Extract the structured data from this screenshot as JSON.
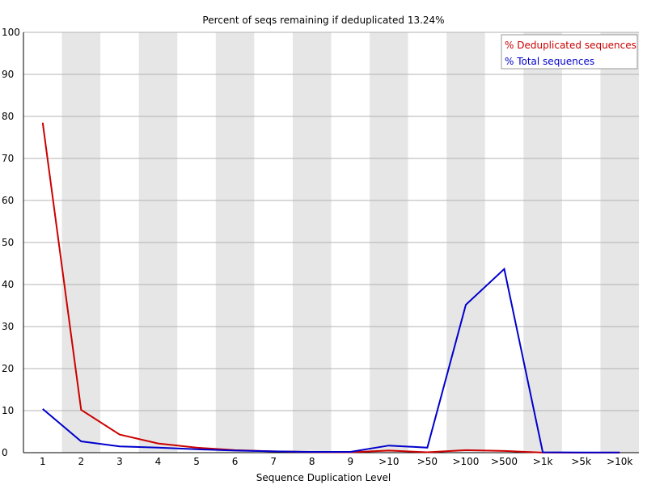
{
  "chart_data": {
    "type": "line",
    "title": "Percent of seqs remaining if deduplicated 13.24%",
    "xlabel": "Sequence Duplication Level",
    "ylabel": "",
    "ylim": [
      0,
      100
    ],
    "yticks": [
      "0",
      "10",
      "20",
      "30",
      "40",
      "50",
      "60",
      "70",
      "80",
      "90",
      "100"
    ],
    "categories": [
      "1",
      "2",
      "3",
      "4",
      "5",
      "6",
      "7",
      "8",
      "9",
      ">10",
      ">50",
      ">100",
      ">500",
      ">1k",
      ">5k",
      ">10k"
    ],
    "grid": true,
    "legend_position": "top-right",
    "series": [
      {
        "name": "% Deduplicated sequences",
        "color": "#cc0000",
        "values": [
          78.5,
          10.2,
          4.3,
          2.2,
          1.2,
          0.6,
          0.3,
          0.15,
          0.1,
          0.5,
          0.1,
          0.6,
          0.4,
          0.01,
          0.0,
          0.0
        ]
      },
      {
        "name": "% Total sequences",
        "color": "#0000cc",
        "values": [
          10.4,
          2.7,
          1.5,
          1.2,
          0.8,
          0.5,
          0.3,
          0.2,
          0.2,
          1.7,
          1.2,
          35.2,
          43.7,
          0.1,
          0.05,
          0.05
        ]
      }
    ]
  }
}
